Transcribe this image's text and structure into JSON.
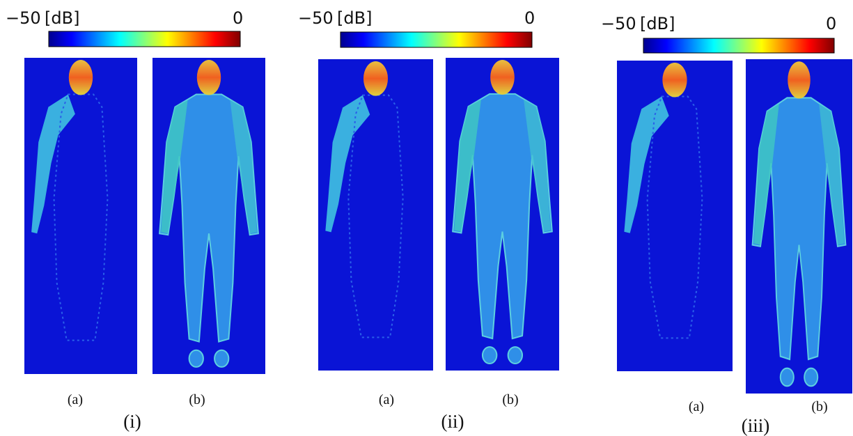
{
  "panels": [
    {
      "colorbar": {
        "min": "−50",
        "unit": "[dB]",
        "max": "0"
      },
      "images": [
        {
          "label": "(a)"
        },
        {
          "label": "(b)"
        }
      ],
      "label": "(i)"
    },
    {
      "colorbar": {
        "min": "−50",
        "unit": "[dB]",
        "max": "0"
      },
      "images": [
        {
          "label": "(a)"
        },
        {
          "label": "(b)"
        }
      ],
      "label": "(ii)"
    },
    {
      "colorbar": {
        "min": "−50",
        "unit": "[dB]",
        "max": "0"
      },
      "images": [
        {
          "label": "(a)"
        },
        {
          "label": "(b)"
        }
      ],
      "label": "(iii)"
    }
  ]
}
